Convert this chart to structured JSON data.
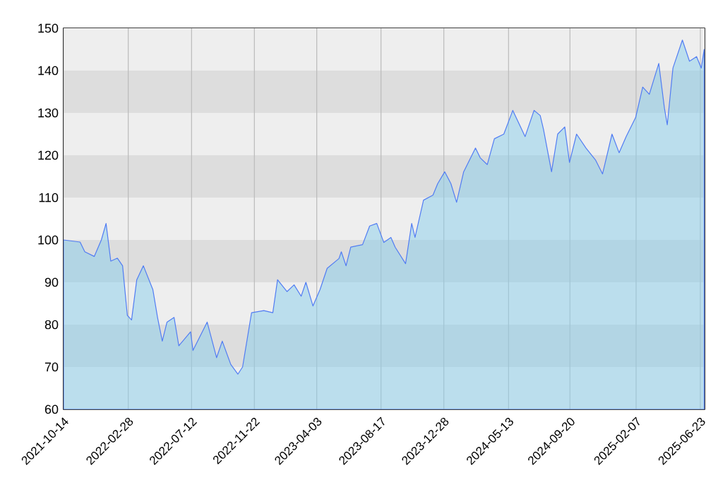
{
  "chart_data": {
    "type": "area",
    "xlim": [
      "2021-10-14",
      "2025-07-02"
    ],
    "ylim": [
      60,
      150
    ],
    "xticks": [
      "2021-10-14",
      "2022-02-28",
      "2022-07-12",
      "2022-11-22",
      "2023-04-03",
      "2023-08-17",
      "2023-12-28",
      "2024-05-13",
      "2024-09-20",
      "2025-02-07",
      "2025-06-23"
    ],
    "yticks": [
      60,
      70,
      80,
      90,
      100,
      110,
      120,
      130,
      140,
      150
    ],
    "grid": true,
    "series": [
      {
        "color": "#87ceeb",
        "x": [
          "2021-10-14",
          "2021-11-18",
          "2021-11-28",
          "2021-12-18",
          "2022-01-02",
          "2022-01-12",
          "2022-01-22",
          "2022-02-05",
          "2022-02-16",
          "2022-02-26",
          "2022-03-07",
          "2022-03-18",
          "2022-04-01",
          "2022-04-21",
          "2022-05-01",
          "2022-05-11",
          "2022-05-21",
          "2022-06-05",
          "2022-06-15",
          "2022-07-10",
          "2022-07-15",
          "2022-08-14",
          "2022-09-03",
          "2022-09-15",
          "2022-10-03",
          "2022-10-18",
          "2022-10-28",
          "2022-11-16",
          "2022-12-12",
          "2022-12-31",
          "2023-01-10",
          "2023-01-30",
          "2023-02-14",
          "2023-03-01",
          "2023-03-11",
          "2023-03-26",
          "2023-04-10",
          "2023-04-25",
          "2023-05-20",
          "2023-05-25",
          "2023-06-04",
          "2023-06-14",
          "2023-07-09",
          "2023-07-24",
          "2023-08-08",
          "2023-08-23",
          "2023-09-07",
          "2023-09-16",
          "2023-10-08",
          "2023-10-21",
          "2023-10-28",
          "2023-11-15",
          "2023-12-05",
          "2023-12-15",
          "2023-12-30",
          "2024-01-12",
          "2024-01-24",
          "2024-02-08",
          "2024-03-04",
          "2024-03-14",
          "2024-03-29",
          "2024-04-13",
          "2024-05-03",
          "2024-05-22",
          "2024-06-17",
          "2024-07-06",
          "2024-07-19",
          "2024-07-26",
          "2024-08-12",
          "2024-08-25",
          "2024-09-09",
          "2024-09-19",
          "2024-10-04",
          "2024-10-24",
          "2024-11-13",
          "2024-11-28",
          "2024-12-18",
          "2025-01-02",
          "2025-01-17",
          "2025-02-06",
          "2025-02-21",
          "2025-03-07",
          "2025-03-27",
          "2025-04-08",
          "2025-04-14",
          "2025-04-26",
          "2025-05-16",
          "2025-05-31",
          "2025-06-15",
          "2025-06-25",
          "2025-07-01"
        ],
        "values": [
          100,
          99.5,
          97.2,
          96.1,
          100,
          103.9,
          95,
          95.7,
          93.9,
          82.2,
          81.1,
          90.6,
          93.9,
          88.3,
          81.7,
          76.1,
          80.6,
          81.7,
          75,
          78.3,
          73.9,
          80.6,
          72.2,
          76.1,
          70.6,
          68.3,
          70,
          82.8,
          83.3,
          82.8,
          90.6,
          87.8,
          89.4,
          86.7,
          90,
          84.4,
          88.3,
          93.3,
          95.6,
          97.2,
          93.9,
          98.3,
          98.9,
          103.3,
          103.9,
          99.4,
          100.6,
          98.3,
          94.4,
          103.9,
          100.6,
          109.4,
          110.6,
          113.3,
          116.1,
          113.3,
          108.9,
          116.1,
          121.7,
          119.4,
          117.8,
          123.9,
          125,
          130.6,
          124.4,
          130.6,
          129.4,
          126.1,
          116.1,
          125,
          126.7,
          118.3,
          125,
          121.7,
          118.9,
          115.6,
          125,
          120.6,
          124.4,
          128.9,
          136.1,
          134.4,
          141.7,
          131.1,
          127.2,
          140.6,
          147.2,
          142.2,
          143.3,
          140.6,
          145
        ]
      }
    ]
  }
}
